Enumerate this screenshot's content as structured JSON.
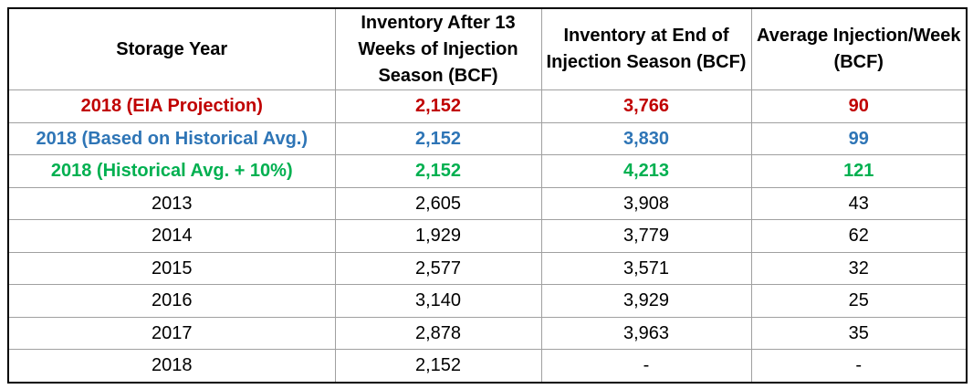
{
  "table": {
    "columns": [
      "Storage Year",
      "Inventory After 13 Weeks of Injection Season (BCF)",
      "Inventory at End of Injection Season (BCF)",
      "Average Injection/Week (BCF)"
    ],
    "rows": [
      {
        "cells": [
          "2018 (EIA Projection)",
          "2,152",
          "3,766",
          "90"
        ],
        "color": "#c00000"
      },
      {
        "cells": [
          "2018 (Based on Historical Avg.)",
          "2,152",
          "3,830",
          "99"
        ],
        "color": "#2e75b6"
      },
      {
        "cells": [
          "2018 (Historical Avg. + 10%)",
          "2,152",
          "4,213",
          "121"
        ],
        "color": "#00b050"
      },
      {
        "cells": [
          "2013",
          "2,605",
          "3,908",
          "43"
        ]
      },
      {
        "cells": [
          "2014",
          "1,929",
          "3,779",
          "62"
        ]
      },
      {
        "cells": [
          "2015",
          "2,577",
          "3,571",
          "32"
        ]
      },
      {
        "cells": [
          "2016",
          "3,140",
          "3,929",
          "25"
        ]
      },
      {
        "cells": [
          "2017",
          "2,878",
          "3,963",
          "35"
        ]
      },
      {
        "cells": [
          "2018",
          "2,152",
          "-",
          "-"
        ]
      }
    ]
  }
}
